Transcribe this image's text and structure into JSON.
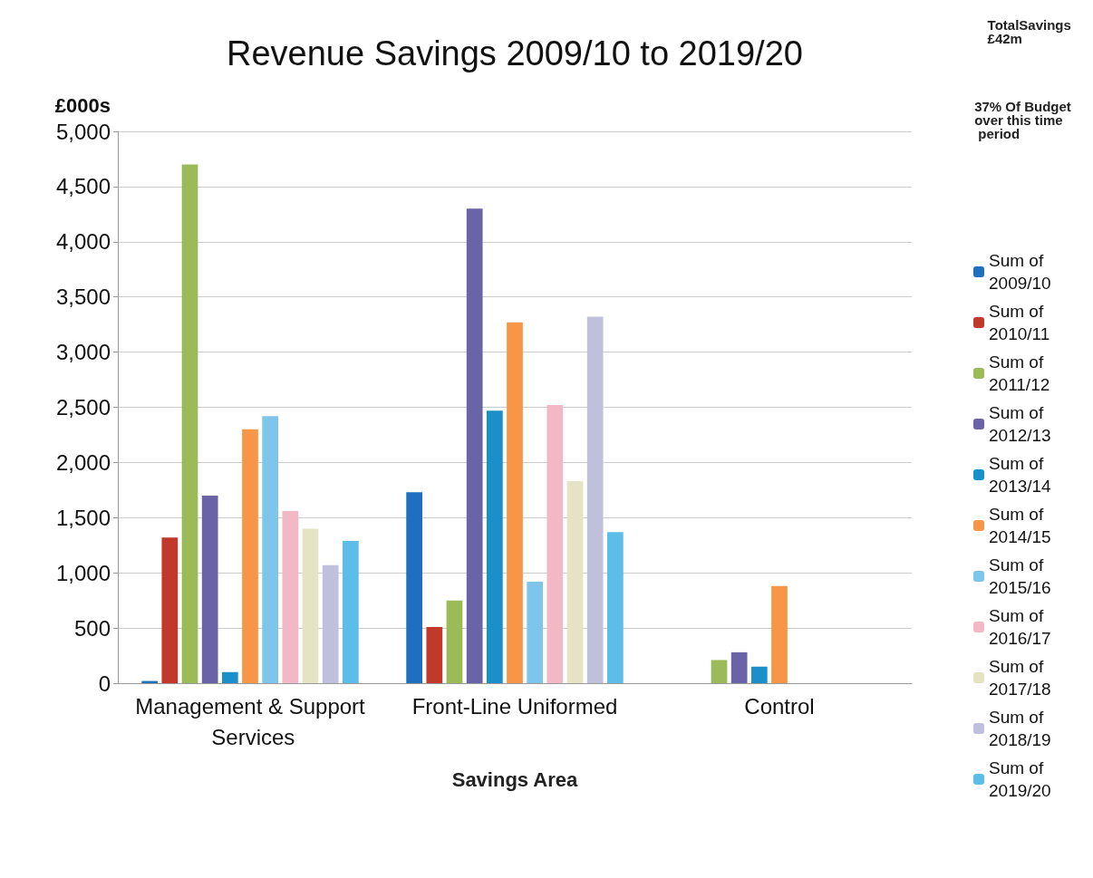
{
  "chart_data": {
    "type": "bar",
    "title": "Revenue Savings 2009/10 to 2019/20",
    "ylabel": "£000s",
    "xlabel": "Savings Area",
    "annotations": [
      "TotalSavings £42m",
      "37% Of Budget over this time period"
    ],
    "categories": [
      "Management & Support Services",
      "Front-Line Uniformed",
      "Control"
    ],
    "series": [
      {
        "name": "Sum of 2009/10",
        "color": "#1f6fbf",
        "values": [
          20,
          1730,
          null
        ]
      },
      {
        "name": "Sum of 2010/11",
        "color": "#c0392b",
        "values": [
          1320,
          510,
          null
        ]
      },
      {
        "name": "Sum of 2011/12",
        "color": "#9bbb59",
        "values": [
          4700,
          750,
          210
        ]
      },
      {
        "name": "Sum of 2012/13",
        "color": "#6b63a8",
        "values": [
          1700,
          4300,
          280
        ]
      },
      {
        "name": "Sum of 2013/14",
        "color": "#1a8fc9",
        "values": [
          100,
          2470,
          150
        ]
      },
      {
        "name": "Sum of 2014/15",
        "color": "#f79646",
        "values": [
          2300,
          3270,
          880
        ]
      },
      {
        "name": "Sum of 2015/16",
        "color": "#7ec5ec",
        "values": [
          2420,
          920,
          null
        ]
      },
      {
        "name": "Sum of 2016/17",
        "color": "#f2b8c6",
        "values": [
          1560,
          2520,
          null
        ]
      },
      {
        "name": "Sum of 2017/18",
        "color": "#e4e4c4",
        "values": [
          1400,
          1830,
          null
        ]
      },
      {
        "name": "Sum of 2018/19",
        "color": "#c0c0dc",
        "values": [
          1070,
          3320,
          null
        ]
      },
      {
        "name": "Sum of 2019/20",
        "color": "#5bbde8",
        "values": [
          1290,
          1370,
          null
        ]
      }
    ],
    "ylim": [
      0,
      5000
    ],
    "yticks": [
      {
        "value": 0,
        "label": "0"
      },
      {
        "value": 500,
        "label": "500"
      },
      {
        "value": 1000,
        "label": "1,000"
      },
      {
        "value": 1500,
        "label": "1,500"
      },
      {
        "value": 2000,
        "label": "2,000"
      },
      {
        "value": 2500,
        "label": "2,500"
      },
      {
        "value": 3000,
        "label": "3,000"
      },
      {
        "value": 3500,
        "label": "3,500"
      },
      {
        "value": 4000,
        "label": "4,000"
      },
      {
        "value": 4500,
        "label": "4,500"
      },
      {
        "value": 5000,
        "label": "5,000"
      }
    ],
    "grid": "y",
    "legend": "right"
  }
}
